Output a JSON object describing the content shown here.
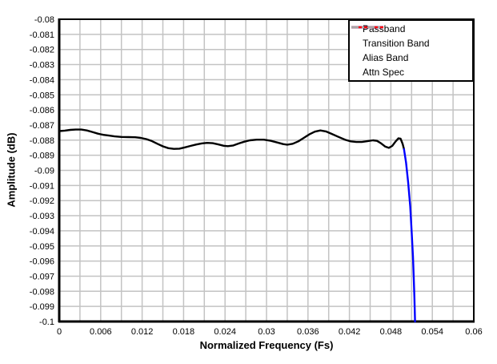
{
  "chart_data": {
    "type": "line",
    "title": "",
    "xlabel": "Normalized Frequency (Fs)",
    "ylabel": "Amplitude (dB)",
    "xlim": [
      0,
      0.06
    ],
    "ylim": [
      -0.1,
      -0.08
    ],
    "x_grid_step": 0.003,
    "y_grid_step": 0.001,
    "grid_on": true,
    "grid_color": "#c3c3c3",
    "axis_color": "#000000",
    "background_color": "#ffffff",
    "x_tick_values": [
      0,
      0.006,
      0.012,
      0.018,
      0.024,
      0.03,
      0.036,
      0.042,
      0.048,
      0.054,
      0.06
    ],
    "x_tick_labels": [
      "0",
      "0.006",
      "0.012",
      "0.018",
      "0.024",
      "0.03",
      "0.036",
      "0.042",
      "0.048",
      "0.054",
      "0.06"
    ],
    "y_tick_values": [
      -0.08,
      -0.081,
      -0.082,
      -0.083,
      -0.084,
      -0.085,
      -0.086,
      -0.087,
      -0.088,
      -0.089,
      -0.09,
      -0.091,
      -0.092,
      -0.093,
      -0.094,
      -0.095,
      -0.096,
      -0.097,
      -0.098,
      -0.099,
      -0.1
    ],
    "y_tick_labels": [
      "-0.08",
      "-0.081",
      "-0.082",
      "-0.083",
      "-0.084",
      "-0.085",
      "-0.086",
      "-0.087",
      "-0.088",
      "-0.089",
      "-0.09",
      "-0.091",
      "-0.092",
      "-0.093",
      "-0.094",
      "-0.095",
      "-0.096",
      "-0.097",
      "-0.098",
      "-0.099",
      "-0.1"
    ],
    "legend": {
      "position": "top-right",
      "entries": [
        {
          "label": "Passband",
          "color": "#000000",
          "dash": "solid"
        },
        {
          "label": "Transition Band",
          "color": "#0000ff",
          "dash": "solid"
        },
        {
          "label": "Alias Band",
          "color": "#ff0000",
          "dash": "solid"
        },
        {
          "label": "Attn Spec",
          "color": "#a6a6a6",
          "dash": "dash-dot"
        }
      ]
    },
    "series": [
      {
        "name": "Passband",
        "color": "#000000",
        "dash": "solid",
        "points": [
          [
            0.0,
            -0.0874
          ],
          [
            0.0008,
            -0.08737
          ],
          [
            0.0016,
            -0.08732
          ],
          [
            0.0024,
            -0.0873
          ],
          [
            0.0032,
            -0.0873
          ],
          [
            0.004,
            -0.08736
          ],
          [
            0.0048,
            -0.08746
          ],
          [
            0.0056,
            -0.08757
          ],
          [
            0.0064,
            -0.08765
          ],
          [
            0.0072,
            -0.0877
          ],
          [
            0.008,
            -0.08775
          ],
          [
            0.009,
            -0.08779
          ],
          [
            0.01,
            -0.0878
          ],
          [
            0.011,
            -0.08781
          ],
          [
            0.0118,
            -0.08785
          ],
          [
            0.0126,
            -0.08793
          ],
          [
            0.0134,
            -0.08806
          ],
          [
            0.0142,
            -0.08824
          ],
          [
            0.015,
            -0.08841
          ],
          [
            0.0158,
            -0.08853
          ],
          [
            0.0166,
            -0.08858
          ],
          [
            0.0174,
            -0.08856
          ],
          [
            0.0182,
            -0.08848
          ],
          [
            0.019,
            -0.08838
          ],
          [
            0.0198,
            -0.08829
          ],
          [
            0.0206,
            -0.08822
          ],
          [
            0.0214,
            -0.08818
          ],
          [
            0.0222,
            -0.0882
          ],
          [
            0.023,
            -0.08828
          ],
          [
            0.0238,
            -0.08837
          ],
          [
            0.0244,
            -0.0884
          ],
          [
            0.0252,
            -0.08835
          ],
          [
            0.026,
            -0.08822
          ],
          [
            0.0268,
            -0.0881
          ],
          [
            0.0276,
            -0.08801
          ],
          [
            0.0286,
            -0.08797
          ],
          [
            0.0296,
            -0.08797
          ],
          [
            0.0306,
            -0.08804
          ],
          [
            0.0316,
            -0.08816
          ],
          [
            0.0324,
            -0.08826
          ],
          [
            0.033,
            -0.0883
          ],
          [
            0.0338,
            -0.08824
          ],
          [
            0.0346,
            -0.08808
          ],
          [
            0.0354,
            -0.08785
          ],
          [
            0.0362,
            -0.08762
          ],
          [
            0.037,
            -0.08744
          ],
          [
            0.0378,
            -0.08736
          ],
          [
            0.0386,
            -0.08742
          ],
          [
            0.0394,
            -0.08758
          ],
          [
            0.0404,
            -0.08778
          ],
          [
            0.0414,
            -0.08798
          ],
          [
            0.0422,
            -0.08808
          ],
          [
            0.043,
            -0.08812
          ],
          [
            0.0438,
            -0.08812
          ],
          [
            0.0446,
            -0.08807
          ],
          [
            0.0454,
            -0.08801
          ],
          [
            0.046,
            -0.08805
          ],
          [
            0.0466,
            -0.08822
          ],
          [
            0.0472,
            -0.08843
          ],
          [
            0.0477,
            -0.08851
          ],
          [
            0.0482,
            -0.08838
          ],
          [
            0.0487,
            -0.08808
          ],
          [
            0.0491,
            -0.08788
          ],
          [
            0.0494,
            -0.0879
          ],
          [
            0.0497,
            -0.08825
          ],
          [
            0.0499,
            -0.0886
          ]
        ]
      },
      {
        "name": "Transition Band",
        "color": "#0000ff",
        "dash": "solid",
        "points": [
          [
            0.0499,
            -0.0886
          ],
          [
            0.0502,
            -0.0895
          ],
          [
            0.0505,
            -0.0908
          ],
          [
            0.0508,
            -0.0924
          ],
          [
            0.051,
            -0.094
          ],
          [
            0.0512,
            -0.0957
          ],
          [
            0.0513,
            -0.097
          ],
          [
            0.0514,
            -0.0984
          ],
          [
            0.0515,
            -0.1
          ]
        ]
      },
      {
        "name": "Alias Band",
        "color": "#ff0000",
        "dash": "solid",
        "points": []
      },
      {
        "name": "Attn Spec",
        "color": "#a6a6a6",
        "dash": "dash-dot",
        "points": []
      }
    ]
  }
}
